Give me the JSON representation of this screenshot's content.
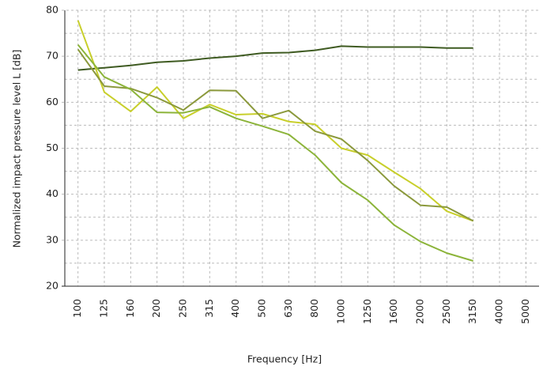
{
  "chart_data": {
    "type": "line",
    "x_label": "Frequency [Hz]",
    "y_label": "Normalized impact pressure level L [dB]",
    "categories": [
      "100",
      "125",
      "160",
      "200",
      "250",
      "315",
      "400",
      "500",
      "630",
      "800",
      "1000",
      "1250",
      "1600",
      "2000",
      "2500",
      "3150",
      "4000",
      "5000"
    ],
    "series": [
      {
        "color": "#3f5b22",
        "values": [
          67,
          67.5,
          68,
          68.7,
          69,
          69.6,
          70,
          70.7,
          70.8,
          71.3,
          72.2,
          72,
          72,
          72,
          71.8,
          71.8,
          null,
          null
        ]
      },
      {
        "color": "#c8cf2b",
        "values": [
          77.8,
          62.2,
          58,
          63.3,
          56.5,
          59.5,
          57.3,
          57.5,
          55.8,
          55.2,
          50,
          48.5,
          44.8,
          41.2,
          36.3,
          34.2,
          null,
          null
        ]
      },
      {
        "color": "#8b993c",
        "values": [
          71.5,
          63.5,
          63,
          61,
          58.3,
          62.6,
          62.5,
          56.5,
          58.2,
          53.7,
          52,
          47.3,
          41.8,
          37.6,
          37.2,
          34.2,
          null,
          null
        ]
      },
      {
        "color": "#8cb43a",
        "values": [
          72.5,
          65.5,
          62.8,
          57.8,
          57.7,
          59,
          56.5,
          54.8,
          53,
          48.5,
          42.5,
          38.7,
          33.3,
          29.7,
          27.2,
          25.5,
          null,
          null
        ]
      }
    ],
    "ylim": [
      20,
      80
    ],
    "yticks": [
      20,
      30,
      40,
      50,
      60,
      70,
      80
    ],
    "minor_yticks": [
      25,
      35,
      45,
      55,
      65,
      75
    ],
    "grid": true
  }
}
